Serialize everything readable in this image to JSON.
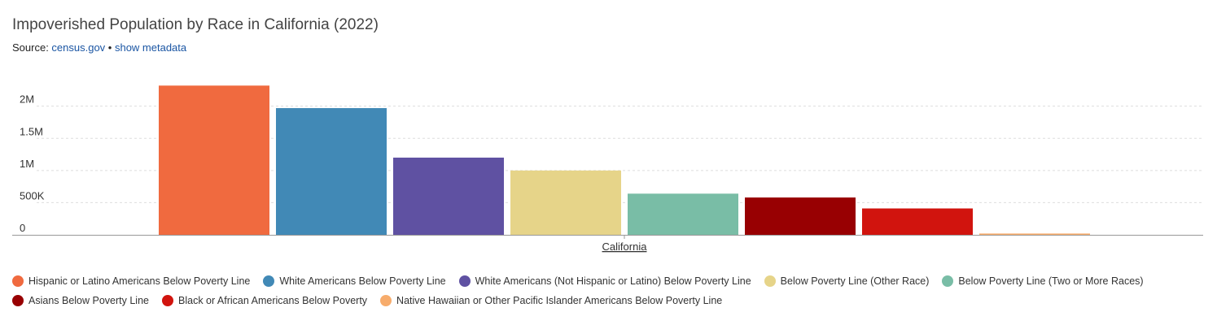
{
  "header": {
    "title": "Impoverished Population by Race in California (2022)",
    "source_prefix": "Source: ",
    "source_link": "census.gov",
    "separator": " • ",
    "metadata_link": "show metadata"
  },
  "chart_data": {
    "type": "bar",
    "categories": [
      "California"
    ],
    "series": [
      {
        "name": "Hispanic or Latino Americans Below Poverty Line",
        "values": [
          2320000
        ],
        "color": "#f06a3f"
      },
      {
        "name": "White Americans Below Poverty Line",
        "values": [
          1970000
        ],
        "color": "#4189b6"
      },
      {
        "name": "White Americans (Not Hispanic or Latino) Below Poverty Line",
        "values": [
          1200000
        ],
        "color": "#5f51a2"
      },
      {
        "name": "Below Poverty Line (Other Race)",
        "values": [
          1000000
        ],
        "color": "#e6d489"
      },
      {
        "name": "Below Poverty Line (Two or More Races)",
        "values": [
          640000
        ],
        "color": "#79bda6"
      },
      {
        "name": "Asians Below Poverty Line",
        "values": [
          580000
        ],
        "color": "#980002"
      },
      {
        "name": "Black or African Americans Below Poverty",
        "values": [
          410000
        ],
        "color": "#d1140e"
      },
      {
        "name": "Native Hawaiian or Other Pacific Islander Americans Below Poverty Line",
        "values": [
          20000
        ],
        "color": "#f7ac6c"
      }
    ],
    "y_ticks": [
      0,
      500000,
      1000000,
      1500000,
      2000000
    ],
    "y_tick_labels": [
      "0",
      "500K",
      "1M",
      "1.5M",
      "2M"
    ],
    "ylim": [
      0,
      2400000
    ],
    "grid": true,
    "legend_position": "bottom"
  }
}
